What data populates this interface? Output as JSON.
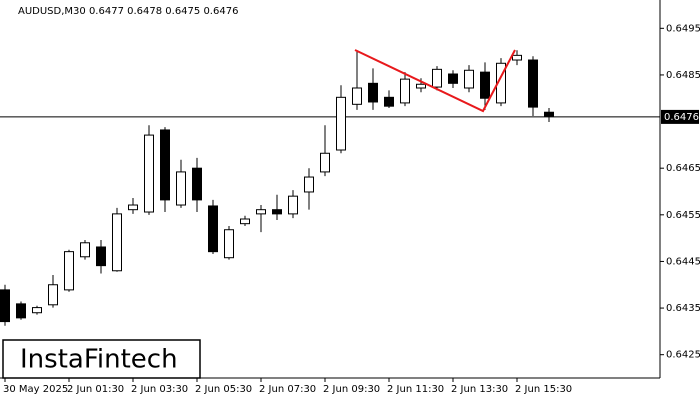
{
  "chart_data": {
    "type": "candlestick",
    "title": "AUDUSD,M30  0.6477 0.6478 0.6475 0.6476",
    "logo": "InstaFintech",
    "categories": [
      "30 May 2025",
      null,
      null,
      null,
      "2 Jun 01:30",
      null,
      null,
      null,
      "2 Jun 03:30",
      null,
      null,
      null,
      "2 Jun 05:30",
      null,
      null,
      null,
      "2 Jun 07:30",
      null,
      null,
      null,
      "2 Jun 09:30",
      null,
      null,
      null,
      "2 Jun 11:30",
      null,
      null,
      null,
      "2 Jun 13:30",
      null,
      null,
      null,
      "2 Jun 15:30",
      null,
      null
    ],
    "open": [
      0.64389,
      0.64359,
      0.6434,
      0.64357,
      0.64389,
      0.6446,
      0.64481,
      0.6443,
      0.64561,
      0.64556,
      0.64732,
      0.64571,
      0.6465,
      0.64569,
      0.64458,
      0.64531,
      0.64552,
      0.64561,
      0.64552,
      0.64599,
      0.64642,
      0.64689,
      0.64787,
      0.64832,
      0.64802,
      0.6479,
      0.64822,
      0.64824,
      0.64852,
      0.64822,
      0.64856,
      0.6479,
      0.64882,
      0.64882,
      0.6477
    ],
    "high": [
      0.644,
      0.64364,
      0.64355,
      0.64421,
      0.64475,
      0.64496,
      0.64496,
      0.64565,
      0.64586,
      0.64742,
      0.64738,
      0.64668,
      0.64672,
      0.64582,
      0.64526,
      0.64548,
      0.64571,
      0.64593,
      0.64603,
      0.6465,
      0.64742,
      0.64828,
      0.64903,
      0.64864,
      0.64817,
      0.64856,
      0.64843,
      0.64869,
      0.6486,
      0.64871,
      0.64877,
      0.64886,
      0.64903,
      0.6489,
      0.64779
    ],
    "low": [
      0.64312,
      0.64325,
      0.64336,
      0.64351,
      0.64385,
      0.64454,
      0.64424,
      0.64428,
      0.64552,
      0.6455,
      0.64556,
      0.64565,
      0.64556,
      0.64466,
      0.64454,
      0.64526,
      0.64513,
      0.64539,
      0.64543,
      0.64561,
      0.64633,
      0.64682,
      0.64775,
      0.64775,
      0.64779,
      0.64783,
      0.64813,
      0.64817,
      0.64822,
      0.64813,
      0.64775,
      0.64783,
      0.64871,
      0.64762,
      0.64749
    ],
    "close": [
      0.64321,
      0.64329,
      0.64351,
      0.644,
      0.64471,
      0.6449,
      0.64441,
      0.64552,
      0.64571,
      0.64721,
      0.64582,
      0.64642,
      0.64582,
      0.64471,
      0.64518,
      0.64541,
      0.64561,
      0.64552,
      0.6459,
      0.64631,
      0.64682,
      0.64802,
      0.64822,
      0.64792,
      0.64783,
      0.64841,
      0.6483,
      0.64862,
      0.64832,
      0.6486,
      0.648,
      0.64875,
      0.64892,
      0.64781,
      0.64762
    ],
    "up_color": "#ffffff",
    "down_color": "#000000",
    "last_price": 0.6476,
    "ylim": [
      0.642,
      0.65
    ],
    "yticks": [
      0.6425,
      0.6435,
      0.6445,
      0.6455,
      0.6465,
      0.6485,
      0.6495
    ]
  }
}
